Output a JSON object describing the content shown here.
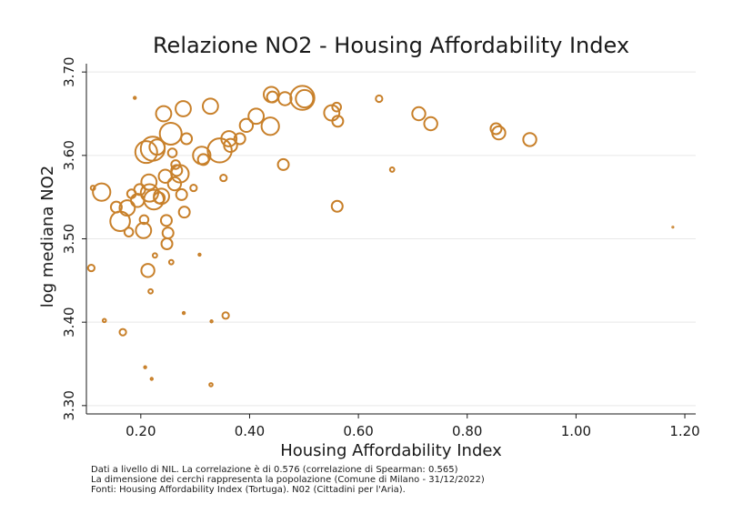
{
  "chart_data": {
    "type": "scatter",
    "title": "Relazione NO2 - Housing Affordability Index",
    "xlabel": "Housing Affordability Index",
    "ylabel": "log mediana NO2",
    "xlim": [
      0.1,
      1.22
    ],
    "ylim": [
      3.29,
      3.71
    ],
    "x_ticks": [
      "0.20",
      "0.40",
      "0.60",
      "0.80",
      "1.00",
      "1.20"
    ],
    "y_ticks": [
      "3.30",
      "3.40",
      "3.50",
      "3.60",
      "3.70"
    ],
    "grid": "horizontal",
    "marker_color": "#c8802a",
    "points": [
      {
        "x": 0.109,
        "y": 3.465,
        "size": 3
      },
      {
        "x": 0.112,
        "y": 3.561,
        "size": 2
      },
      {
        "x": 0.128,
        "y": 3.556,
        "size": 8
      },
      {
        "x": 0.133,
        "y": 3.402,
        "size": 1.5
      },
      {
        "x": 0.155,
        "y": 3.538,
        "size": 5
      },
      {
        "x": 0.162,
        "y": 3.521,
        "size": 9
      },
      {
        "x": 0.167,
        "y": 3.388,
        "size": 3
      },
      {
        "x": 0.175,
        "y": 3.537,
        "size": 7
      },
      {
        "x": 0.178,
        "y": 3.508,
        "size": 4
      },
      {
        "x": 0.183,
        "y": 3.554,
        "size": 4
      },
      {
        "x": 0.189,
        "y": 3.669,
        "size": 1
      },
      {
        "x": 0.194,
        "y": 3.546,
        "size": 6
      },
      {
        "x": 0.198,
        "y": 3.559,
        "size": 5
      },
      {
        "x": 0.205,
        "y": 3.51,
        "size": 7
      },
      {
        "x": 0.206,
        "y": 3.523,
        "size": 4
      },
      {
        "x": 0.208,
        "y": 3.346,
        "size": 1
      },
      {
        "x": 0.21,
        "y": 3.604,
        "size": 10
      },
      {
        "x": 0.213,
        "y": 3.462,
        "size": 6
      },
      {
        "x": 0.215,
        "y": 3.568,
        "size": 7
      },
      {
        "x": 0.216,
        "y": 3.555,
        "size": 8
      },
      {
        "x": 0.218,
        "y": 3.437,
        "size": 2
      },
      {
        "x": 0.22,
        "y": 3.332,
        "size": 1
      },
      {
        "x": 0.222,
        "y": 3.608,
        "size": 11
      },
      {
        "x": 0.224,
        "y": 3.547,
        "size": 9
      },
      {
        "x": 0.226,
        "y": 3.48,
        "size": 2
      },
      {
        "x": 0.23,
        "y": 3.61,
        "size": 7
      },
      {
        "x": 0.234,
        "y": 3.549,
        "size": 5
      },
      {
        "x": 0.238,
        "y": 3.551,
        "size": 7
      },
      {
        "x": 0.242,
        "y": 3.65,
        "size": 7
      },
      {
        "x": 0.245,
        "y": 3.575,
        "size": 6
      },
      {
        "x": 0.247,
        "y": 3.522,
        "size": 5
      },
      {
        "x": 0.248,
        "y": 3.494,
        "size": 5
      },
      {
        "x": 0.25,
        "y": 3.507,
        "size": 5
      },
      {
        "x": 0.255,
        "y": 3.626,
        "size": 10
      },
      {
        "x": 0.256,
        "y": 3.472,
        "size": 2
      },
      {
        "x": 0.258,
        "y": 3.603,
        "size": 4
      },
      {
        "x": 0.262,
        "y": 3.566,
        "size": 6
      },
      {
        "x": 0.264,
        "y": 3.589,
        "size": 4
      },
      {
        "x": 0.266,
        "y": 3.582,
        "size": 5
      },
      {
        "x": 0.272,
        "y": 3.578,
        "size": 8
      },
      {
        "x": 0.275,
        "y": 3.553,
        "size": 5
      },
      {
        "x": 0.278,
        "y": 3.656,
        "size": 7
      },
      {
        "x": 0.279,
        "y": 3.411,
        "size": 1
      },
      {
        "x": 0.28,
        "y": 3.532,
        "size": 5
      },
      {
        "x": 0.284,
        "y": 3.62,
        "size": 5
      },
      {
        "x": 0.297,
        "y": 3.561,
        "size": 3
      },
      {
        "x": 0.308,
        "y": 3.481,
        "size": 1
      },
      {
        "x": 0.312,
        "y": 3.6,
        "size": 8
      },
      {
        "x": 0.315,
        "y": 3.595,
        "size": 5
      },
      {
        "x": 0.328,
        "y": 3.659,
        "size": 7
      },
      {
        "x": 0.329,
        "y": 3.325,
        "size": 1.5
      },
      {
        "x": 0.33,
        "y": 3.401,
        "size": 1
      },
      {
        "x": 0.345,
        "y": 3.606,
        "size": 11
      },
      {
        "x": 0.352,
        "y": 3.573,
        "size": 3
      },
      {
        "x": 0.356,
        "y": 3.408,
        "size": 3
      },
      {
        "x": 0.362,
        "y": 3.62,
        "size": 7
      },
      {
        "x": 0.365,
        "y": 3.612,
        "size": 6
      },
      {
        "x": 0.382,
        "y": 3.62,
        "size": 5
      },
      {
        "x": 0.394,
        "y": 3.636,
        "size": 6
      },
      {
        "x": 0.412,
        "y": 3.647,
        "size": 7
      },
      {
        "x": 0.438,
        "y": 3.635,
        "size": 8
      },
      {
        "x": 0.44,
        "y": 3.673,
        "size": 7
      },
      {
        "x": 0.442,
        "y": 3.67,
        "size": 5
      },
      {
        "x": 0.462,
        "y": 3.589,
        "size": 5
      },
      {
        "x": 0.465,
        "y": 3.668,
        "size": 6
      },
      {
        "x": 0.497,
        "y": 3.669,
        "size": 11
      },
      {
        "x": 0.501,
        "y": 3.668,
        "size": 8
      },
      {
        "x": 0.551,
        "y": 3.651,
        "size": 7
      },
      {
        "x": 0.56,
        "y": 3.658,
        "size": 4
      },
      {
        "x": 0.561,
        "y": 3.539,
        "size": 5
      },
      {
        "x": 0.562,
        "y": 3.641,
        "size": 5
      },
      {
        "x": 0.638,
        "y": 3.668,
        "size": 3
      },
      {
        "x": 0.662,
        "y": 3.583,
        "size": 2
      },
      {
        "x": 0.711,
        "y": 3.65,
        "size": 6
      },
      {
        "x": 0.733,
        "y": 3.638,
        "size": 6
      },
      {
        "x": 0.853,
        "y": 3.632,
        "size": 5
      },
      {
        "x": 0.858,
        "y": 3.627,
        "size": 6
      },
      {
        "x": 0.915,
        "y": 3.619,
        "size": 6
      },
      {
        "x": 1.178,
        "y": 3.514,
        "size": 0.3
      }
    ]
  },
  "notes": [
    "Dati a livello di NIL. La correlazione è di 0.576 (correlazione di Spearman: 0.565)",
    "La dimensione dei cerchi rappresenta la popolazione (Comune di Milano - 31/12/2022)",
    "Fonti: Housing Affordability Index (Tortuga). N02 (Cittadini per l'Aria)."
  ]
}
